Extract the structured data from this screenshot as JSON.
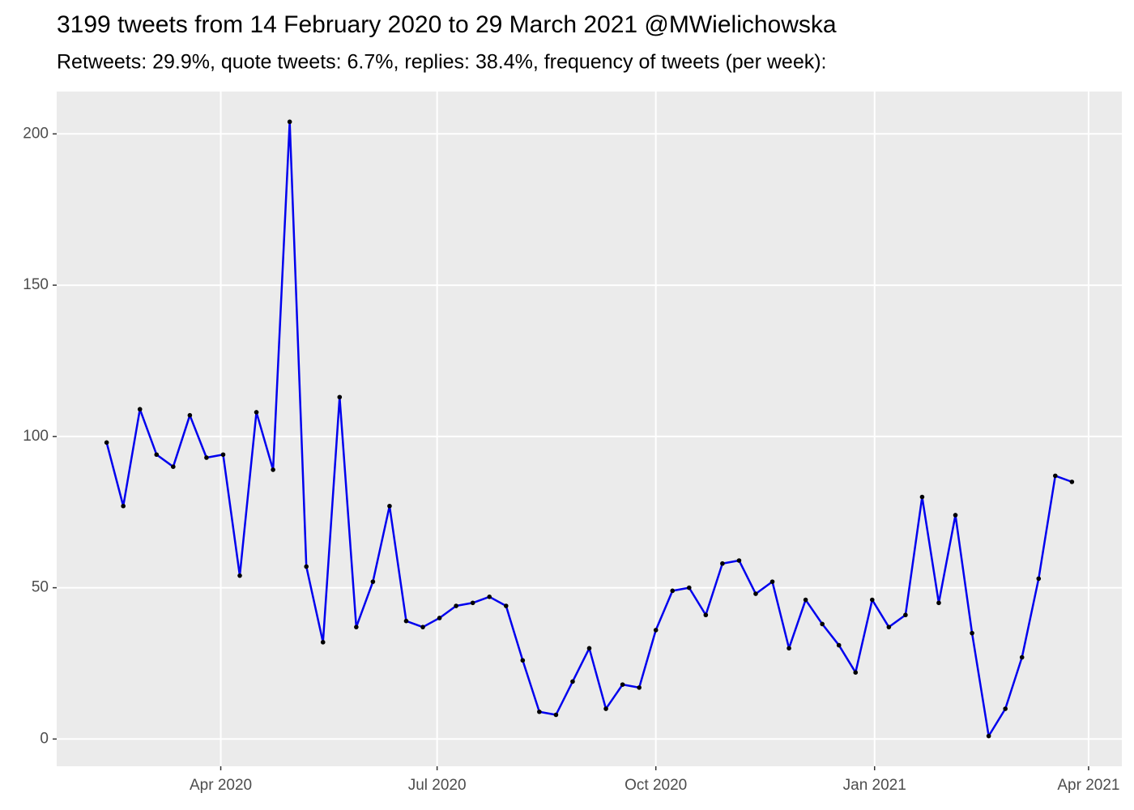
{
  "chart_data": {
    "type": "line",
    "title": "3199 tweets from 14 February 2020 to 29 March 2021 @MWielichowska",
    "subtitle": "Retweets: 29.9%, quote tweets: 6.7%, replies: 38.4%, frequency of tweets (per week):",
    "x": [
      43,
      50,
      57,
      64,
      71,
      78,
      85,
      92,
      99,
      106,
      113,
      120,
      127,
      134,
      141,
      148,
      155,
      162,
      169,
      176,
      183,
      190,
      197,
      204,
      211,
      218,
      225,
      232,
      239,
      246,
      253,
      260,
      267,
      274,
      281,
      288,
      295,
      302,
      309,
      316,
      323,
      330,
      337,
      344,
      351,
      358,
      365,
      372,
      379,
      386,
      393,
      400,
      407,
      414,
      421,
      428,
      435,
      442,
      449
    ],
    "series": [
      {
        "color": "#0000ee",
        "values": [
          98,
          77,
          109,
          94,
          90,
          107,
          93,
          94,
          54,
          108,
          89,
          204,
          57,
          32,
          113,
          37,
          52,
          77,
          39,
          37,
          40,
          44,
          45,
          47,
          44,
          26,
          9,
          8,
          19,
          30,
          10,
          18,
          17,
          36,
          49,
          50,
          41,
          58,
          59,
          48,
          52,
          30,
          46,
          38,
          31,
          22,
          46,
          37,
          41,
          80,
          45,
          74,
          35,
          1,
          10,
          27,
          53,
          87,
          85
        ]
      }
    ],
    "xlim": [
      22,
      470
    ],
    "xticks": [
      {
        "value": 91,
        "label": "Apr 2020"
      },
      {
        "value": 182,
        "label": "Jul 2020"
      },
      {
        "value": 274,
        "label": "Oct 2020"
      },
      {
        "value": 366,
        "label": "Jan 2021"
      },
      {
        "value": 456,
        "label": "Apr 2021"
      }
    ],
    "ylim": [
      -9,
      214
    ],
    "yticks": [
      0,
      50,
      100,
      150,
      200
    ],
    "grid": true
  }
}
